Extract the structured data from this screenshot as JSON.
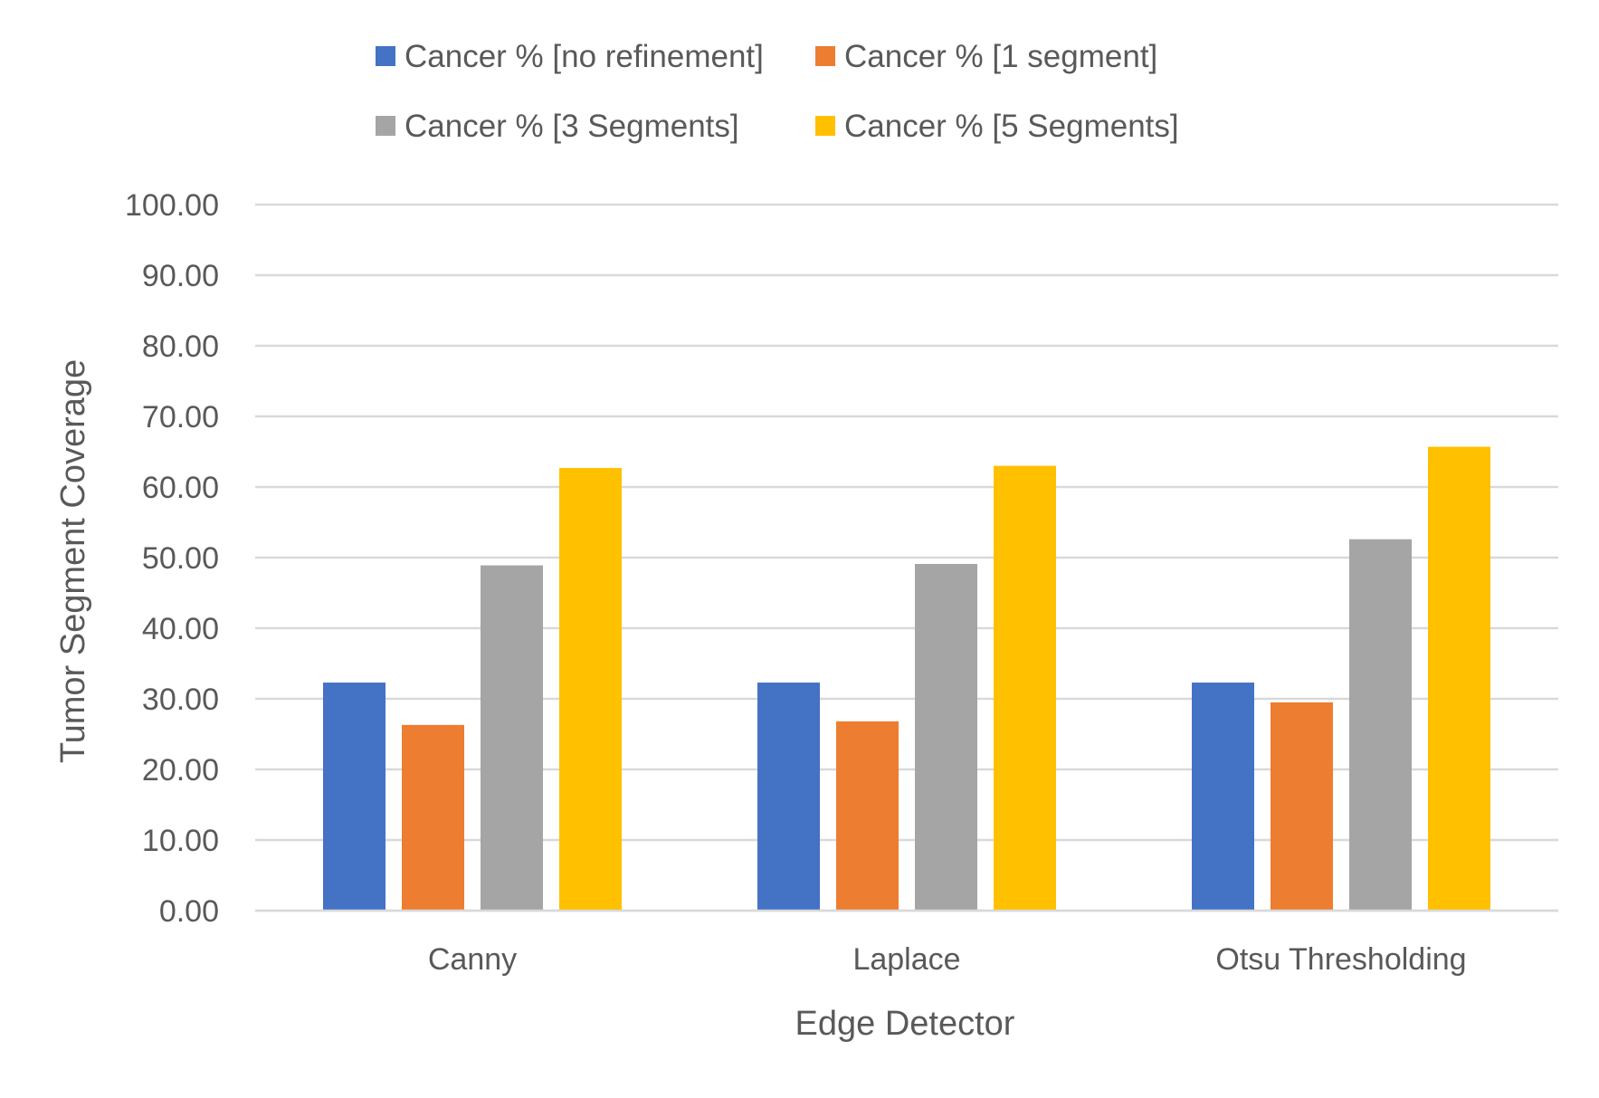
{
  "chart_data": {
    "type": "bar",
    "title": "",
    "xlabel": "Edge Detector",
    "ylabel": "Tumor Segment Coverage",
    "ylim": [
      0,
      100
    ],
    "yticks": [
      "0.00",
      "10.00",
      "20.00",
      "30.00",
      "40.00",
      "50.00",
      "60.00",
      "70.00",
      "80.00",
      "90.00",
      "100.00"
    ],
    "ytick_values": [
      0,
      10,
      20,
      30,
      40,
      50,
      60,
      70,
      80,
      90,
      100
    ],
    "grid": true,
    "legend_position": "top",
    "categories": [
      "Canny",
      "Laplace",
      "Otsu Thresholding"
    ],
    "series": [
      {
        "name": "Cancer % [no refinement]",
        "color": "#4472C4",
        "values": [
          32.3,
          32.3,
          32.3
        ]
      },
      {
        "name": "Cancer % [1 segment]",
        "color": "#ED7D31",
        "values": [
          26.3,
          26.8,
          29.5
        ]
      },
      {
        "name": "Cancer % [3 Segments]",
        "color": "#A5A5A5",
        "values": [
          48.9,
          49.1,
          52.6
        ]
      },
      {
        "name": "Cancer % [5 Segments]",
        "color": "#FFC000",
        "values": [
          62.7,
          63.0,
          65.7
        ]
      }
    ]
  }
}
